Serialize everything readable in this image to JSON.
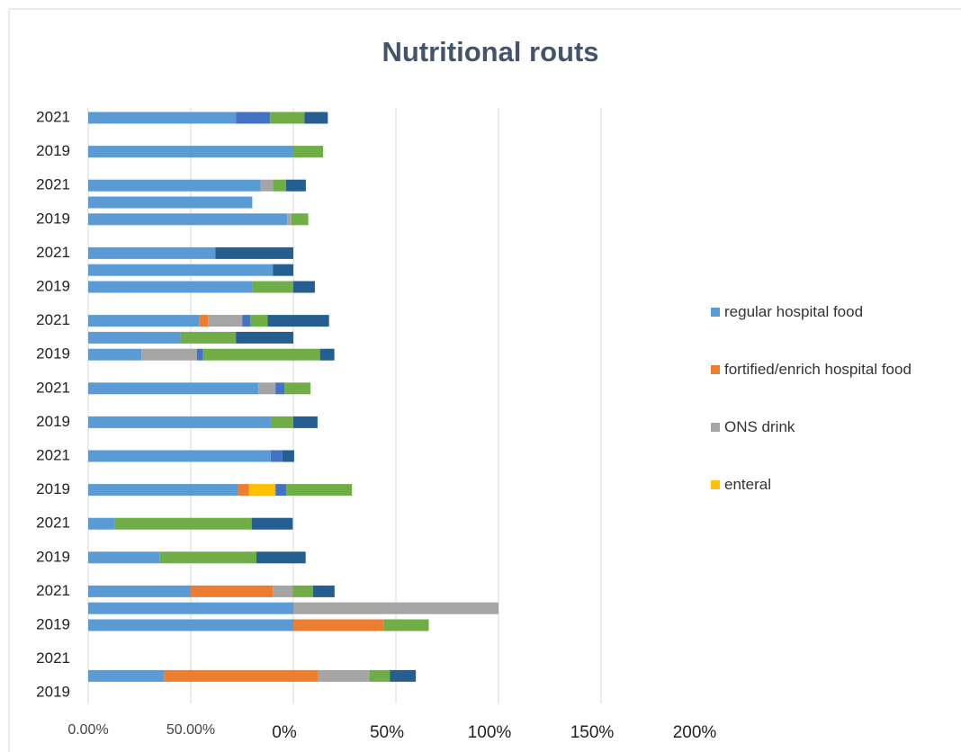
{
  "chart_data": {
    "type": "stacked-bar-horizontal",
    "title": "Nutritional routs",
    "categories": [
      "2021",
      null,
      "2019",
      null,
      "2021",
      null,
      "2019",
      null,
      "2021",
      null,
      "2019",
      null,
      "2021",
      null,
      "2019",
      null,
      "2021",
      null,
      "2019",
      null,
      "2021",
      null,
      "2019",
      null,
      "2021",
      null,
      "2019",
      null,
      "2021",
      null,
      "2019",
      null,
      "2021",
      null,
      "2019"
    ],
    "series": [
      {
        "name": "regular hospital food",
        "color": "#5b9bd5",
        "values": [
          72,
          null,
          100,
          null,
          84,
          80,
          97,
          null,
          62,
          90,
          80,
          null,
          54,
          45,
          26,
          null,
          83,
          null,
          89,
          null,
          89,
          null,
          73,
          null,
          13,
          null,
          35,
          null,
          50,
          100,
          100,
          null,
          null,
          37,
          null
        ]
      },
      {
        "name": "fortified/enrich hospital food",
        "color": "#ed7d31",
        "values": [
          null,
          null,
          null,
          null,
          null,
          null,
          null,
          null,
          null,
          null,
          null,
          null,
          4.4,
          null,
          null,
          null,
          null,
          null,
          null,
          null,
          null,
          null,
          5.3,
          null,
          null,
          null,
          null,
          null,
          40,
          null,
          44,
          null,
          null,
          75,
          null
        ]
      },
      {
        "name": "ONS drink",
        "color": "#a5a5a5",
        "values": [
          null,
          null,
          null,
          null,
          6,
          null,
          2,
          null,
          null,
          null,
          null,
          null,
          16.7,
          null,
          27,
          null,
          8.3,
          null,
          null,
          null,
          null,
          null,
          null,
          null,
          null,
          null,
          null,
          null,
          9.6,
          100,
          null,
          null,
          null,
          25,
          null
        ]
      },
      {
        "name": "enteral",
        "color": "#ffc000",
        "values": [
          null,
          null,
          null,
          null,
          null,
          null,
          null,
          null,
          null,
          null,
          null,
          null,
          null,
          null,
          null,
          null,
          null,
          null,
          null,
          null,
          null,
          null,
          13,
          null,
          null,
          null,
          null,
          null,
          null,
          null,
          null,
          null,
          null,
          null,
          null
        ]
      },
      {
        "color": "#4472c4",
        "values": [
          16.7,
          null,
          null,
          null,
          null,
          null,
          null,
          null,
          null,
          null,
          null,
          null,
          4,
          null,
          3,
          null,
          4.4,
          null,
          null,
          null,
          5.7,
          null,
          5.3,
          null,
          null,
          null,
          null,
          null,
          null,
          null,
          null,
          null,
          null,
          null,
          null
        ]
      },
      {
        "color": "#70ad47",
        "values": [
          16.7,
          null,
          14.5,
          null,
          6.5,
          null,
          8.3,
          null,
          null,
          null,
          20,
          null,
          8.3,
          27,
          57,
          null,
          12.7,
          null,
          11,
          null,
          null,
          null,
          32,
          null,
          66.7,
          null,
          47,
          null,
          10,
          null,
          22,
          null,
          null,
          10,
          null
        ]
      },
      {
        "color": "#255e91",
        "values": [
          11.4,
          null,
          null,
          null,
          9.6,
          null,
          null,
          null,
          38,
          10,
          10.5,
          null,
          30,
          28,
          7,
          null,
          null,
          null,
          11.8,
          null,
          5.7,
          null,
          null,
          null,
          20,
          null,
          24,
          null,
          10.5,
          null,
          null,
          null,
          null,
          12.7,
          null
        ]
      }
    ],
    "xlim": [
      0,
      250
    ],
    "xticks": [
      {
        "value": 0,
        "label": "0.00%"
      },
      {
        "value": 50,
        "label": "50.00%"
      }
    ],
    "x2lim": [
      -100,
      150
    ],
    "x2ticks": [
      {
        "value": 0,
        "label": "0%"
      },
      {
        "value": 50,
        "label": "50%"
      },
      {
        "value": 100,
        "label": "100%"
      },
      {
        "value": 150,
        "label": "150%"
      },
      {
        "value": 200,
        "label": "200%"
      }
    ],
    "grid": true,
    "legend": "right"
  }
}
